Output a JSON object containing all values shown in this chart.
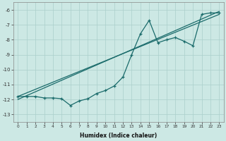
{
  "xlabel": "Humidex (Indice chaleur)",
  "background_color": "#cce8e4",
  "grid_color": "#aacfcb",
  "line_color": "#1a6b6b",
  "xlim": [
    -0.5,
    23.5
  ],
  "ylim": [
    -13.5,
    -5.5
  ],
  "xticks": [
    0,
    1,
    2,
    3,
    4,
    5,
    6,
    7,
    8,
    9,
    10,
    11,
    12,
    13,
    14,
    15,
    16,
    17,
    18,
    19,
    20,
    21,
    22,
    23
  ],
  "yticks": [
    -13,
    -12,
    -11,
    -10,
    -9,
    -8,
    -7,
    -6
  ],
  "x": [
    0,
    1,
    2,
    3,
    4,
    5,
    6,
    7,
    8,
    9,
    10,
    11,
    12,
    13,
    14,
    15,
    16,
    17,
    18,
    19,
    20,
    21,
    22,
    23
  ],
  "y_main": [
    -11.8,
    -11.8,
    -11.8,
    -11.9,
    -11.9,
    -11.95,
    -12.4,
    -12.1,
    -11.95,
    -11.6,
    -11.4,
    -11.1,
    -10.5,
    -9.0,
    -7.6,
    -6.7,
    -8.2,
    -8.0,
    -7.85,
    -8.1,
    -8.4,
    -6.3,
    -6.2,
    -6.2
  ],
  "trend1_x": [
    0,
    23
  ],
  "trend1_y": [
    -12.0,
    -6.1
  ],
  "trend2_x": [
    0,
    23
  ],
  "trend2_y": [
    -11.8,
    -6.3
  ]
}
